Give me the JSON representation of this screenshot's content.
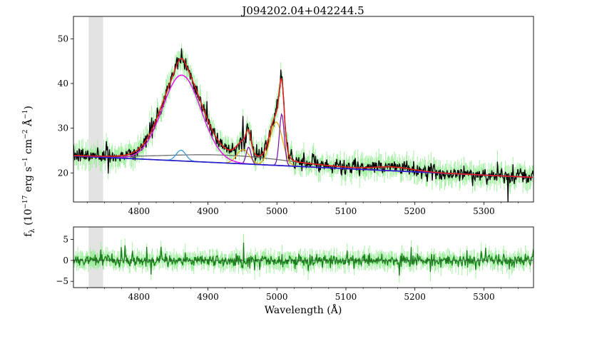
{
  "chart_data": [
    {
      "type": "line",
      "panel": "spectrum",
      "title": "J094202.04+042244.5",
      "xlabel": "",
      "ylabel": "f_λ (10^-17 erg s^-1 cm^-2 Å^-1)",
      "ylabel_parts": {
        "base": "f",
        "sub": "λ",
        "pre": "(10",
        "e1": "−17",
        "mid1": " erg s",
        "e2": "−1",
        "mid2": " cm",
        "e3": "−2",
        "mid3": " Å",
        "e4": "−1",
        "post": ")"
      },
      "xlim": [
        4705,
        5372
      ],
      "ylim": [
        13.5,
        55
      ],
      "xticks": [
        "4800",
        "4900",
        "5000",
        "5100",
        "5200",
        "5300"
      ],
      "xtick_values": [
        4800,
        4900,
        5000,
        5100,
        5200,
        5300
      ],
      "yticks": [
        "20",
        "30",
        "40",
        "50"
      ],
      "ytick_values": [
        20,
        30,
        40,
        50
      ],
      "shaded_band": [
        4727,
        4748
      ],
      "grid": false,
      "series": [
        {
          "role": "data",
          "color": "#000000"
        },
        {
          "role": "error",
          "color": "#90ee90"
        },
        {
          "role": "total-fit",
          "color": "#e02020"
        },
        {
          "role": "broad-hbeta",
          "color": "#e020e0"
        },
        {
          "role": "narrow-hbeta",
          "color": "#3a9ad9"
        },
        {
          "role": "oiii-4959-core",
          "color": "#7b1fa2"
        },
        {
          "role": "oiii-5007-core",
          "color": "#7b1fa2"
        },
        {
          "role": "oiii-4959-wing",
          "color": "#e6a817"
        },
        {
          "role": "oiii-5007-wing",
          "color": "#e6a817"
        },
        {
          "role": "feii",
          "color": "#707070"
        },
        {
          "role": "continuum",
          "color": "#1f1fcf"
        }
      ]
    },
    {
      "type": "line",
      "panel": "residual",
      "xlabel": "Wavelength (Å)",
      "ylabel": "",
      "xlim": [
        4705,
        5372
      ],
      "ylim": [
        -6.5,
        8
      ],
      "xticks": [
        "4800",
        "4900",
        "5000",
        "5100",
        "5200",
        "5300"
      ],
      "xtick_values": [
        4800,
        4900,
        5000,
        5100,
        5200,
        5300
      ],
      "yticks": [
        "−5",
        "0",
        "5"
      ],
      "ytick_values": [
        -5,
        0,
        5
      ],
      "shaded_band": [
        4727,
        4748
      ],
      "zero_line": 0,
      "series": [
        {
          "role": "residual",
          "color": "#1a7f1a"
        },
        {
          "role": "error",
          "color": "#90ee90"
        }
      ]
    }
  ]
}
